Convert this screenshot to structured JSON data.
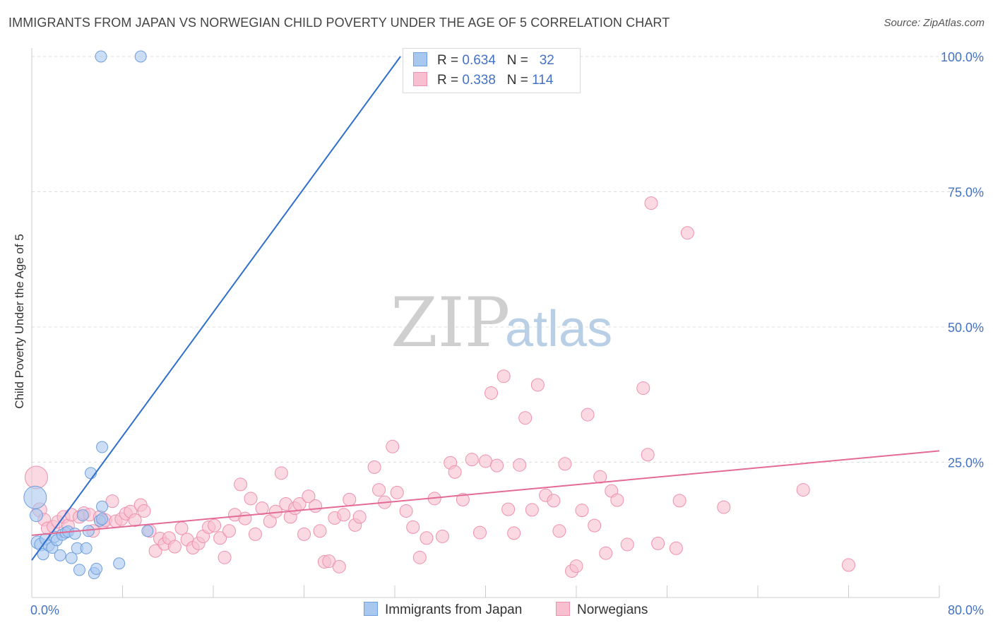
{
  "title": "IMMIGRANTS FROM JAPAN VS NORWEGIAN CHILD POVERTY UNDER THE AGE OF 5 CORRELATION CHART",
  "source": "Source: ZipAtlas.com",
  "watermark": {
    "zip": "ZIP",
    "atlas": "atlas"
  },
  "legend": {
    "japan": {
      "r_label": "R = ",
      "r_value": "0.634",
      "n_label": "N = ",
      "n_value": "32"
    },
    "norway": {
      "r_label": "R = ",
      "r_value": "0.338",
      "n_label": "N = ",
      "n_value": "114"
    }
  },
  "bottom_legend": {
    "japan": "Immigrants from Japan",
    "norway": "Norwegians"
  },
  "colors": {
    "japan_fill": "#a9c8f0",
    "japan_stroke": "#6f9fdc",
    "japan_line": "#2f6fcc",
    "norway_fill": "#f7bfd0",
    "norway_stroke": "#ee91ad",
    "norway_line": "#e36b96",
    "tick_text": "#4472c4",
    "grid": "#dddddd"
  },
  "chart_data": {
    "type": "scatter",
    "title": "IMMIGRANTS FROM JAPAN VS NORWEGIAN CHILD POVERTY UNDER THE AGE OF 5 CORRELATION CHART",
    "xlabel": "",
    "ylabel": "Child Poverty Under the Age of 5",
    "xlim": [
      0,
      80
    ],
    "ylim": [
      0,
      105
    ],
    "x_tick_labels": [
      "0.0%",
      "80.0%"
    ],
    "y_ticks": [
      25,
      50,
      75,
      100
    ],
    "y_tick_labels": [
      "25.0%",
      "50.0%",
      "75.0%",
      "100.0%"
    ],
    "series": [
      {
        "name": "Immigrants from Japan",
        "r": 0.634,
        "n": 32,
        "trendline": {
          "x0": 0,
          "y0": 6.9,
          "x1": 32.5,
          "y1": 100
        },
        "points": [
          [
            0.3,
            18.5,
            16
          ],
          [
            0.4,
            15.2,
            9
          ],
          [
            0.5,
            10.2,
            9
          ],
          [
            0.8,
            9.8,
            9
          ],
          [
            1.0,
            8.0,
            8
          ],
          [
            1.2,
            10.8,
            8
          ],
          [
            1.5,
            9.6,
            8
          ],
          [
            1.8,
            9.2,
            8
          ],
          [
            2.0,
            11.2,
            8
          ],
          [
            2.2,
            10.6,
            8
          ],
          [
            2.5,
            7.8,
            8
          ],
          [
            2.7,
            11.6,
            8
          ],
          [
            3.0,
            12.0,
            8
          ],
          [
            3.2,
            12.2,
            8
          ],
          [
            3.5,
            7.3,
            8
          ],
          [
            3.8,
            11.8,
            8
          ],
          [
            4.0,
            9.1,
            8
          ],
          [
            4.2,
            5.1,
            8
          ],
          [
            4.5,
            15.2,
            8
          ],
          [
            4.8,
            9.1,
            8
          ],
          [
            5.0,
            12.3,
            8
          ],
          [
            5.2,
            23.0,
            8
          ],
          [
            5.5,
            4.5,
            8
          ],
          [
            5.7,
            5.3,
            8
          ],
          [
            6.0,
            14.2,
            8
          ],
          [
            6.2,
            14.5,
            8
          ],
          [
            6.1,
            100,
            8
          ],
          [
            6.2,
            16.8,
            8
          ],
          [
            6.2,
            27.8,
            8
          ],
          [
            7.7,
            6.3,
            8
          ],
          [
            9.6,
            100,
            8
          ],
          [
            10.2,
            12.3,
            8
          ]
        ]
      },
      {
        "name": "Norwegians",
        "r": 0.338,
        "n": 114,
        "trendline": {
          "x0": 0,
          "y0": 11.5,
          "x1": 80,
          "y1": 27.1
        },
        "points": [
          [
            0.4,
            22.2,
            16
          ],
          [
            0.7,
            16.2,
            10
          ],
          [
            1.1,
            14.4,
            9
          ],
          [
            1.4,
            12.8,
            9
          ],
          [
            1.9,
            13.1,
            9
          ],
          [
            2.3,
            14.0,
            9
          ],
          [
            2.8,
            14.9,
            9
          ],
          [
            3.2,
            13.3,
            9
          ],
          [
            3.5,
            15.3,
            9
          ],
          [
            4.2,
            14.9,
            9
          ],
          [
            4.6,
            15.6,
            9
          ],
          [
            5.1,
            15.3,
            9
          ],
          [
            5.4,
            12.3,
            9
          ],
          [
            6.0,
            14.9,
            9
          ],
          [
            6.3,
            13.9,
            9
          ],
          [
            6.5,
            14.3,
            9
          ],
          [
            7.1,
            17.8,
            9
          ],
          [
            7.4,
            14.1,
            9
          ],
          [
            7.9,
            14.5,
            9
          ],
          [
            8.3,
            15.5,
            9
          ],
          [
            8.7,
            15.9,
            9
          ],
          [
            9.1,
            14.3,
            9
          ],
          [
            9.6,
            17.1,
            9
          ],
          [
            9.9,
            16.0,
            9
          ],
          [
            10.4,
            12.3,
            9
          ],
          [
            10.9,
            8.6,
            9
          ],
          [
            11.3,
            10.9,
            9
          ],
          [
            11.7,
            9.9,
            9
          ],
          [
            12.1,
            11.0,
            9
          ],
          [
            12.6,
            9.4,
            9
          ],
          [
            13.2,
            12.8,
            9
          ],
          [
            13.7,
            10.7,
            9
          ],
          [
            14.2,
            9.2,
            9
          ],
          [
            14.7,
            10.0,
            9
          ],
          [
            15.1,
            11.3,
            9
          ],
          [
            15.6,
            13.0,
            9
          ],
          [
            16.1,
            13.3,
            9
          ],
          [
            16.6,
            11.0,
            9
          ],
          [
            17.0,
            7.4,
            9
          ],
          [
            17.4,
            12.3,
            9
          ],
          [
            17.9,
            15.3,
            9
          ],
          [
            18.4,
            20.9,
            9
          ],
          [
            18.8,
            14.6,
            9
          ],
          [
            19.3,
            18.3,
            9
          ],
          [
            19.7,
            11.7,
            9
          ],
          [
            20.3,
            16.5,
            9
          ],
          [
            21.0,
            14.1,
            9
          ],
          [
            21.5,
            15.9,
            9
          ],
          [
            22.0,
            23.0,
            9
          ],
          [
            22.4,
            17.3,
            9
          ],
          [
            22.8,
            14.9,
            9
          ],
          [
            23.2,
            16.5,
            9
          ],
          [
            23.6,
            17.3,
            9
          ],
          [
            24.0,
            11.7,
            9
          ],
          [
            24.4,
            18.7,
            9
          ],
          [
            25.0,
            16.9,
            9
          ],
          [
            25.4,
            12.3,
            9
          ],
          [
            25.8,
            6.6,
            9
          ],
          [
            26.2,
            6.7,
            9
          ],
          [
            26.7,
            14.7,
            9
          ],
          [
            27.1,
            5.7,
            9
          ],
          [
            27.5,
            15.3,
            9
          ],
          [
            28.0,
            18.1,
            9
          ],
          [
            28.5,
            13.4,
            9
          ],
          [
            28.9,
            14.9,
            9
          ],
          [
            30.2,
            24.1,
            9
          ],
          [
            30.6,
            19.9,
            9
          ],
          [
            31.1,
            17.6,
            9
          ],
          [
            31.8,
            27.9,
            9
          ],
          [
            32.2,
            19.4,
            9
          ],
          [
            33.0,
            16.0,
            9
          ],
          [
            33.6,
            13.0,
            9
          ],
          [
            34.2,
            7.4,
            9
          ],
          [
            34.8,
            11.0,
            9
          ],
          [
            35.5,
            18.3,
            9
          ],
          [
            36.2,
            11.3,
            9
          ],
          [
            36.9,
            24.9,
            9
          ],
          [
            37.3,
            23.2,
            9
          ],
          [
            38.0,
            18.1,
            9
          ],
          [
            38.8,
            25.5,
            9
          ],
          [
            39.5,
            12.0,
            9
          ],
          [
            40.0,
            25.2,
            9
          ],
          [
            40.5,
            37.8,
            9
          ],
          [
            41.0,
            24.4,
            9
          ],
          [
            41.6,
            40.9,
            9
          ],
          [
            42.0,
            16.3,
            9
          ],
          [
            42.5,
            11.9,
            9
          ],
          [
            43.0,
            24.5,
            9
          ],
          [
            43.5,
            33.2,
            9
          ],
          [
            44.1,
            16.2,
            9
          ],
          [
            44.6,
            39.3,
            9
          ],
          [
            45.3,
            18.9,
            9
          ],
          [
            46.0,
            17.9,
            9
          ],
          [
            46.5,
            12.3,
            9
          ],
          [
            47.0,
            24.7,
            9
          ],
          [
            47.6,
            4.9,
            9
          ],
          [
            48.0,
            5.8,
            9
          ],
          [
            48.5,
            16.1,
            9
          ],
          [
            49.0,
            33.8,
            9
          ],
          [
            49.6,
            13.3,
            9
          ],
          [
            50.1,
            22.3,
            9
          ],
          [
            50.6,
            8.2,
            9
          ],
          [
            51.1,
            19.7,
            9
          ],
          [
            51.6,
            18.0,
            9
          ],
          [
            52.5,
            9.8,
            9
          ],
          [
            53.9,
            38.7,
            9
          ],
          [
            54.3,
            26.4,
            9
          ],
          [
            54.6,
            72.9,
            9
          ],
          [
            55.2,
            10.0,
            9
          ],
          [
            56.8,
            9.1,
            9
          ],
          [
            57.1,
            17.9,
            9
          ],
          [
            57.8,
            67.4,
            9
          ],
          [
            61.0,
            16.7,
            9
          ],
          [
            68.0,
            19.9,
            9
          ],
          [
            72.0,
            6.0,
            9
          ]
        ]
      }
    ]
  }
}
